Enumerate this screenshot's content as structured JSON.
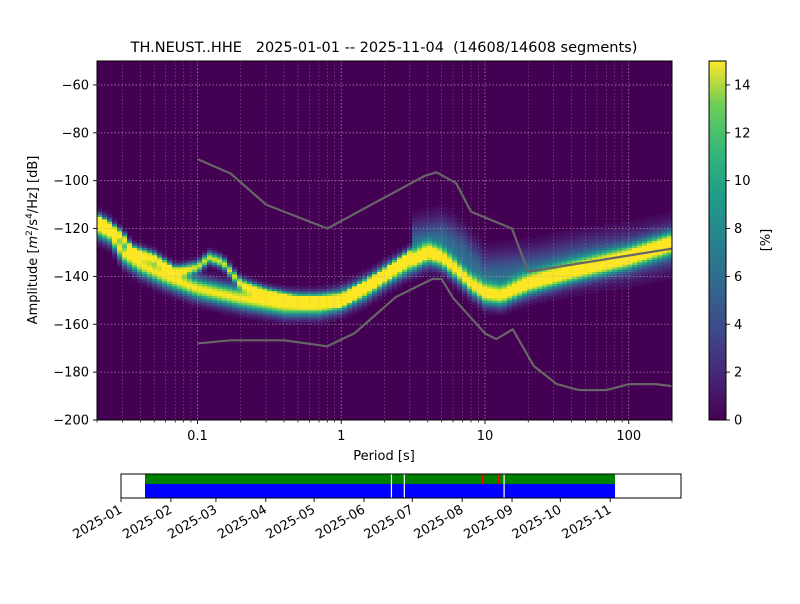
{
  "chart_data": [
    {
      "type": "heatmap",
      "title": "TH.NEUST..HHE   2025-01-01 -- 2025-11-04  (14608/14608 segments)",
      "xlabel": "Period [s]",
      "ylabel_parts": {
        "prefix": "Amplitude [",
        "m": "m",
        "exp2": "2",
        "mid": "/s",
        "exp4": "4",
        "suffix": "/Hz] [dB]"
      },
      "x_scale": "log",
      "xlim": [
        0.02,
        200
      ],
      "ylim": [
        -200,
        -50
      ],
      "x_ticks": [
        0.1,
        1,
        10,
        100
      ],
      "x_tick_labels": [
        "0.1",
        "1",
        "10",
        "100"
      ],
      "y_ticks": [
        -200,
        -180,
        -160,
        -140,
        -120,
        -100,
        -80,
        -60
      ],
      "y_tick_labels": [
        "−200",
        "−180",
        "−160",
        "−140",
        "−120",
        "−100",
        "−80",
        "−60"
      ],
      "grid": true,
      "colormap": "viridis",
      "colorbar": {
        "label": "[%]",
        "range": [
          0,
          15
        ],
        "ticks": [
          0,
          2,
          4,
          6,
          8,
          10,
          12,
          14
        ],
        "tick_labels": [
          "0",
          "2",
          "4",
          "6",
          "8",
          "10",
          "12",
          "14"
        ]
      },
      "background_color": "#440154",
      "density_ridges": [
        {
          "name": "main",
          "width_db": 3.0,
          "points": [
            [
              0.02,
              -119
            ],
            [
              0.025,
              -122
            ],
            [
              0.03,
              -130
            ],
            [
              0.04,
              -135
            ],
            [
              0.06,
              -140
            ],
            [
              0.1,
              -145
            ],
            [
              0.2,
              -149
            ],
            [
              0.4,
              -152
            ],
            [
              0.7,
              -152
            ],
            [
              1,
              -150
            ],
            [
              1.5,
              -145
            ],
            [
              2,
              -140
            ],
            [
              3,
              -134
            ],
            [
              4,
              -130
            ],
            [
              5,
              -132
            ],
            [
              6,
              -136
            ],
            [
              8,
              -143
            ],
            [
              10,
              -147
            ],
            [
              13,
              -148
            ],
            [
              20,
              -143
            ],
            [
              40,
              -138
            ],
            [
              100,
              -132
            ],
            [
              200,
              -126
            ]
          ]
        },
        {
          "name": "secondary",
          "width_db": 1.6,
          "points": [
            [
              0.02,
              -116
            ],
            [
              0.03,
              -123
            ],
            [
              0.035,
              -129
            ],
            [
              0.05,
              -132
            ],
            [
              0.07,
              -138
            ],
            [
              0.1,
              -136
            ],
            [
              0.12,
              -132
            ],
            [
              0.15,
              -134
            ],
            [
              0.2,
              -143
            ],
            [
              0.3,
              -147
            ],
            [
              0.5,
              -150
            ],
            [
              1,
              -150
            ],
            [
              2,
              -139
            ],
            [
              3,
              -131
            ]
          ]
        },
        {
          "name": "upper-spread",
          "width_db": 6.0,
          "points": [
            [
              3,
              -127
            ],
            [
              5,
              -124
            ],
            [
              7,
              -130
            ],
            [
              10,
              -140
            ],
            [
              20,
              -138
            ],
            [
              50,
              -133
            ],
            [
              100,
              -131
            ],
            [
              200,
              -127
            ]
          ]
        }
      ],
      "reference_curves": [
        {
          "name": "NHNM",
          "color": "#666666",
          "points": [
            [
              0.1,
              -91
            ],
            [
              0.17,
              -97
            ],
            [
              0.3,
              -110
            ],
            [
              0.8,
              -120
            ],
            [
              3.8,
              -98
            ],
            [
              4.6,
              -96.5
            ],
            [
              6.3,
              -101
            ],
            [
              8,
              -113
            ],
            [
              15.4,
              -120
            ],
            [
              20,
              -138
            ],
            [
              354.8,
              -126
            ]
          ]
        },
        {
          "name": "NLNM",
          "color": "#666666",
          "points": [
            [
              0.1,
              -168
            ],
            [
              0.17,
              -166.7
            ],
            [
              0.4,
              -166.7
            ],
            [
              0.8,
              -169.2
            ],
            [
              1.24,
              -163.7
            ],
            [
              2.4,
              -148.6
            ],
            [
              4.3,
              -141.1
            ],
            [
              5,
              -141.1
            ],
            [
              6,
              -149
            ],
            [
              10,
              -163.8
            ],
            [
              12,
              -166.2
            ],
            [
              15.6,
              -162.1
            ],
            [
              21.9,
              -177.5
            ],
            [
              31.6,
              -185
            ],
            [
              45,
              -187.5
            ],
            [
              70,
              -187.5
            ],
            [
              101,
              -185
            ],
            [
              154,
              -185
            ],
            [
              328,
              -187.5
            ]
          ]
        }
      ]
    },
    {
      "type": "timeline",
      "x_scale": "time",
      "xlim": [
        "2025-01-01",
        "2025-12-15"
      ],
      "tick_labels": [
        "2025-01",
        "2025-02",
        "2025-03",
        "2025-04",
        "2025-05",
        "2025-06",
        "2025-07",
        "2025-08",
        "2025-09",
        "2025-10",
        "2025-11"
      ],
      "tick_dates": [
        "2025-01-01",
        "2025-02-01",
        "2025-03-01",
        "2025-04-01",
        "2025-05-01",
        "2025-06-01",
        "2025-07-01",
        "2025-08-01",
        "2025-09-01",
        "2025-10-01",
        "2025-11-01"
      ],
      "data_range": [
        "2025-01-01",
        "2025-11-04"
      ],
      "colors": {
        "data": "#0000ff",
        "used": "#008000",
        "gap": "#ffffff",
        "overlap": "#ff0000"
      },
      "gaps": [
        "2025-06-18",
        "2025-06-26",
        "2025-08-27"
      ],
      "overlaps": [
        "2025-08-14",
        "2025-08-24"
      ]
    }
  ]
}
